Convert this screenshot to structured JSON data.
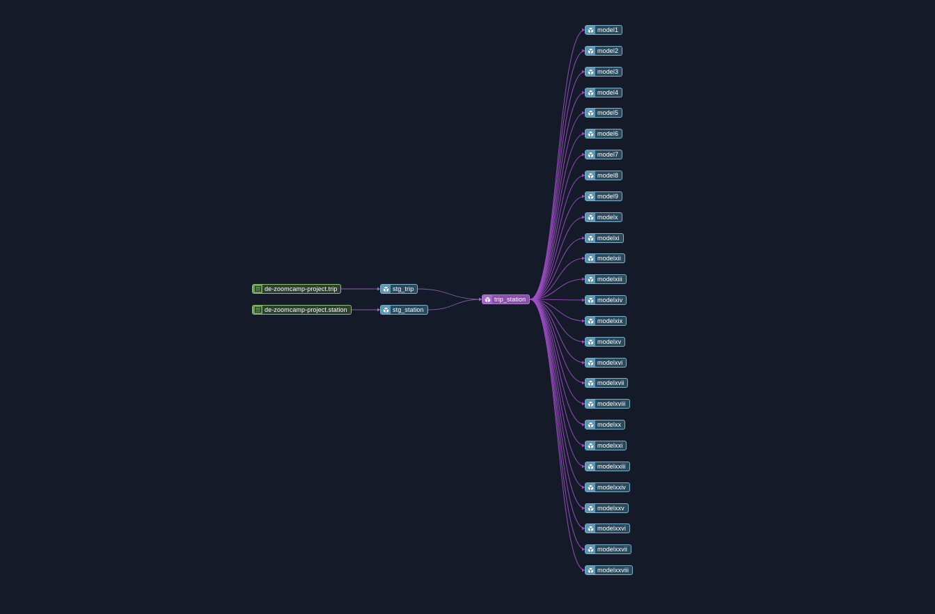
{
  "graph": {
    "sources": [
      {
        "id": "src_trip",
        "label": "de-zoomcamp-project.trip",
        "icon": "source-table-icon"
      },
      {
        "id": "src_station",
        "label": "de-zoomcamp-project.station",
        "icon": "source-table-icon"
      }
    ],
    "staging": [
      {
        "id": "stg_trip",
        "label": "stg_trip",
        "icon": "model-cube-icon"
      },
      {
        "id": "stg_station",
        "label": "stg_station",
        "icon": "model-cube-icon"
      }
    ],
    "center": {
      "id": "trip_station",
      "label": "trip_station",
      "icon": "model-cube-icon"
    },
    "downstream": [
      {
        "label": "model1"
      },
      {
        "label": "model2"
      },
      {
        "label": "model3"
      },
      {
        "label": "model4"
      },
      {
        "label": "model5"
      },
      {
        "label": "model6"
      },
      {
        "label": "model7"
      },
      {
        "label": "model8"
      },
      {
        "label": "model9"
      },
      {
        "label": "modelx"
      },
      {
        "label": "modelxi"
      },
      {
        "label": "modelxii"
      },
      {
        "label": "modelxiii"
      },
      {
        "label": "modelxiv"
      },
      {
        "label": "modelxix"
      },
      {
        "label": "modelxv"
      },
      {
        "label": "modelxvi"
      },
      {
        "label": "modelxvii"
      },
      {
        "label": "modelxviii"
      },
      {
        "label": "modelxx"
      },
      {
        "label": "modelxxi"
      },
      {
        "label": "modelxxiii"
      },
      {
        "label": "modelxxiv"
      },
      {
        "label": "modelxxv"
      },
      {
        "label": "modelxxvi"
      },
      {
        "label": "modelxxvii"
      },
      {
        "label": "modelxxviii"
      }
    ],
    "edges": [
      [
        "src_trip",
        "stg_trip"
      ],
      [
        "src_station",
        "stg_station"
      ],
      [
        "stg_trip",
        "trip_station"
      ],
      [
        "stg_station",
        "trip_station"
      ]
    ],
    "colors": {
      "background": "#141a28",
      "source_border": "#8dbf6e",
      "model_border": "#7fb3cc",
      "focus_fill": "#8a4fad",
      "edge_upstream": "#9a6fb8",
      "edge_downstream": "#a050c8"
    }
  }
}
